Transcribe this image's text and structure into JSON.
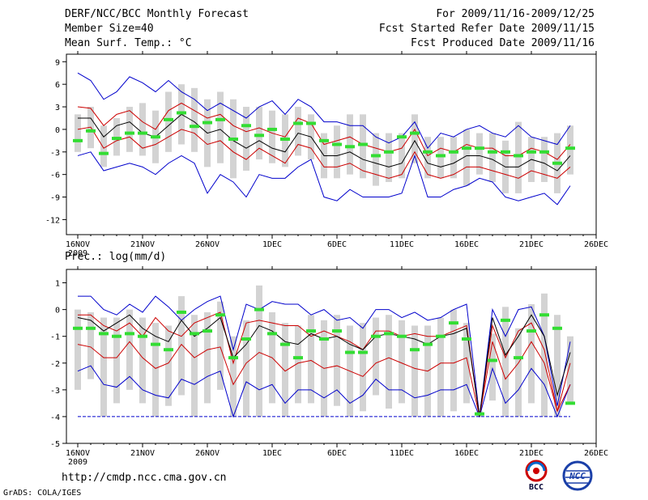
{
  "header": {
    "title": "DERF/NCC/BCC Monthly Forecast",
    "member_size": "Member Size=40",
    "forecast_period": "For 2009/11/16-2009/12/25",
    "start_date": "Fcst Started Refer Date 2009/11/15",
    "produced_date": "Fcst Produced Date 2009/11/16"
  },
  "footer": {
    "url": "http://cmdp.ncc.cma.gov.cn",
    "grads_credit": "GrADS: COLA/IGES",
    "logo_bcc_label": "BCC",
    "logo_ncc_label": "NCC"
  },
  "colors": {
    "max_min": "#0000cc",
    "spread": "#cc0000",
    "mean": "#000000",
    "median": "#33dd33",
    "box": "#d3d3d3"
  },
  "chart_data": [
    {
      "type": "box-line",
      "title": "Mean Surf. Temp.: °C",
      "x_tick_labels": [
        "16NOV",
        "21NOV",
        "26NOV",
        "1DEC",
        "6DEC",
        "11DEC",
        "16DEC",
        "21DEC",
        "26DEC"
      ],
      "x_tick_days": [
        0,
        5,
        10,
        15,
        20,
        25,
        30,
        35,
        40
      ],
      "year_label": "2009",
      "ylim": [
        -14,
        10
      ],
      "y_ticks": [
        9,
        6,
        3,
        0,
        -3,
        -6,
        -9,
        -12
      ],
      "days": [
        0,
        1,
        2,
        3,
        4,
        5,
        6,
        7,
        8,
        9,
        10,
        11,
        12,
        13,
        14,
        15,
        16,
        17,
        18,
        19,
        20,
        21,
        22,
        23,
        24,
        25,
        26,
        27,
        28,
        29,
        30,
        31,
        32,
        33,
        34,
        35,
        36,
        37,
        38
      ],
      "series": [
        {
          "name": "max",
          "values": [
            7.5,
            6.5,
            4.0,
            5.0,
            7.0,
            6.2,
            5.0,
            6.5,
            5.0,
            4.0,
            2.5,
            3.5,
            2.5,
            1.5,
            3.0,
            3.8,
            2.0,
            4.0,
            3.0,
            1.0,
            1.0,
            0.5,
            0.5,
            -1.0,
            -1.8,
            -1.0,
            1.0,
            -2.5,
            -0.5,
            -1.0,
            0.0,
            0.5,
            -0.5,
            -1.0,
            0.5,
            -1.0,
            -1.5,
            -2.0,
            0.5
          ]
        },
        {
          "name": "upper",
          "values": [
            3.0,
            2.8,
            0.5,
            2.0,
            2.5,
            1.0,
            0.0,
            2.5,
            3.5,
            2.5,
            1.5,
            2.0,
            0.5,
            -0.3,
            0.2,
            -0.5,
            -1.0,
            1.5,
            0.8,
            -2.0,
            -1.5,
            -1.0,
            -2.0,
            -2.5,
            -3.0,
            -2.5,
            0.0,
            -3.5,
            -2.5,
            -3.0,
            -2.0,
            -2.5,
            -2.5,
            -3.5,
            -3.5,
            -2.5,
            -3.0,
            -4.0,
            -2.0
          ]
        },
        {
          "name": "mean",
          "values": [
            1.5,
            1.5,
            -1.0,
            0.5,
            1.0,
            -0.5,
            -1.0,
            0.5,
            2.0,
            1.0,
            -0.5,
            0.0,
            -1.5,
            -2.5,
            -1.5,
            -2.5,
            -3.0,
            -0.5,
            -1.0,
            -3.5,
            -3.5,
            -3.0,
            -4.0,
            -4.5,
            -5.0,
            -4.5,
            -1.5,
            -4.5,
            -5.0,
            -4.5,
            -3.5,
            -3.5,
            -4.0,
            -5.0,
            -5.0,
            -4.0,
            -4.5,
            -5.5,
            -3.5
          ]
        },
        {
          "name": "lower",
          "values": [
            0.0,
            0.3,
            -2.5,
            -1.5,
            -1.0,
            -2.5,
            -2.0,
            -1.0,
            0.0,
            -0.5,
            -2.0,
            -1.5,
            -3.0,
            -4.0,
            -2.5,
            -3.5,
            -4.5,
            -2.0,
            -2.5,
            -5.0,
            -5.0,
            -4.5,
            -5.5,
            -6.0,
            -6.5,
            -6.0,
            -3.0,
            -6.0,
            -6.5,
            -6.0,
            -5.0,
            -5.0,
            -5.5,
            -6.0,
            -6.5,
            -5.5,
            -6.0,
            -6.5,
            -5.0
          ]
        },
        {
          "name": "min",
          "values": [
            -3.5,
            -3.0,
            -5.5,
            -5.0,
            -4.5,
            -5.0,
            -6.0,
            -4.5,
            -3.5,
            -4.5,
            -8.5,
            -6.0,
            -7.0,
            -9.0,
            -6.0,
            -6.5,
            -6.5,
            -5.0,
            -4.0,
            -9.0,
            -9.5,
            -8.0,
            -9.0,
            -9.0,
            -9.0,
            -8.5,
            -3.5,
            -9.0,
            -9.0,
            -8.0,
            -7.5,
            -6.5,
            -7.0,
            -9.0,
            -9.5,
            -9.0,
            -8.5,
            -10.0,
            -7.5
          ]
        },
        {
          "name": "median",
          "values": [
            -1.5,
            -0.2,
            -3.2,
            -1.2,
            -0.5,
            -0.5,
            -1.0,
            1.3,
            2.2,
            0.4,
            0.9,
            1.3,
            -1.3,
            0.5,
            -0.8,
            0.0,
            -1.3,
            0.8,
            0.8,
            -1.5,
            -2.0,
            -2.3,
            -2.0,
            -3.5,
            -3.0,
            -1.0,
            -0.5,
            -3.0,
            -3.5,
            -3.0,
            -2.5,
            -2.5,
            -3.0,
            -3.0,
            -3.5,
            -3.0,
            -3.0,
            -4.5,
            -2.5
          ]
        },
        {
          "name": "box_top",
          "values": [
            2.0,
            3.0,
            0.5,
            1.5,
            3.0,
            3.5,
            2.5,
            5.0,
            6.0,
            5.5,
            4.0,
            5.0,
            4.0,
            3.0,
            3.0,
            2.5,
            2.0,
            3.0,
            2.0,
            -0.5,
            0.5,
            2.0,
            2.0,
            -0.5,
            -0.5,
            -0.5,
            2.0,
            -1.0,
            -1.0,
            -1.0,
            0.0,
            -0.5,
            -0.5,
            -1.5,
            1.0,
            -1.0,
            -1.0,
            -0.5,
            0.5
          ]
        },
        {
          "name": "box_bottom",
          "values": [
            -3.0,
            -2.5,
            -5.0,
            -3.5,
            -3.0,
            -3.5,
            -4.5,
            -3.0,
            -2.0,
            -3.0,
            -5.0,
            -4.5,
            -6.5,
            -5.5,
            -4.0,
            -4.5,
            -5.0,
            -3.5,
            -4.0,
            -6.5,
            -6.5,
            -6.0,
            -6.5,
            -7.5,
            -7.0,
            -6.5,
            -4.5,
            -6.5,
            -6.5,
            -6.5,
            -7.5,
            -6.0,
            -7.0,
            -8.5,
            -8.5,
            -7.0,
            -7.0,
            -8.5,
            -6.0
          ]
        }
      ]
    },
    {
      "type": "box-line",
      "title": "Prec.: log(mm/d)",
      "x_tick_labels": [
        "16NOV",
        "21NOV",
        "26NOV",
        "1DEC",
        "6DEC",
        "11DEC",
        "16DEC",
        "21DEC",
        "26DEC"
      ],
      "x_tick_days": [
        0,
        5,
        10,
        15,
        20,
        25,
        30,
        35,
        40
      ],
      "year_label": "2009",
      "ylim": [
        -5,
        1.5
      ],
      "y_ticks": [
        1,
        0,
        -1,
        -2,
        -3,
        -4,
        -5
      ],
      "days": [
        0,
        1,
        2,
        3,
        4,
        5,
        6,
        7,
        8,
        9,
        10,
        11,
        12,
        13,
        14,
        15,
        16,
        17,
        18,
        19,
        20,
        21,
        22,
        23,
        24,
        25,
        26,
        27,
        28,
        29,
        30,
        31,
        32,
        33,
        34,
        35,
        36,
        37,
        38
      ],
      "series": [
        {
          "name": "max",
          "values": [
            0.5,
            0.5,
            0.0,
            -0.2,
            0.2,
            -0.1,
            0.5,
            0.1,
            -0.4,
            0.0,
            0.3,
            0.5,
            -1.5,
            0.2,
            0.0,
            0.3,
            0.2,
            0.2,
            -0.2,
            0.0,
            -0.4,
            -0.3,
            -0.7,
            0.0,
            0.0,
            -0.3,
            -0.1,
            -0.4,
            -0.3,
            0.0,
            0.2,
            -4.0,
            0.0,
            -1.0,
            0.0,
            0.1,
            -1.0,
            -3.6,
            -1.2
          ]
        },
        {
          "name": "upper",
          "values": [
            -0.2,
            -0.2,
            -0.6,
            -0.8,
            -0.5,
            -1.0,
            -0.3,
            -0.8,
            -1.0,
            -0.5,
            -0.3,
            -0.1,
            -2.0,
            -0.5,
            -0.4,
            -0.5,
            -0.6,
            -0.6,
            -1.0,
            -0.8,
            -1.0,
            -1.2,
            -1.5,
            -0.8,
            -0.8,
            -1.0,
            -0.9,
            -1.0,
            -1.0,
            -0.8,
            -0.6,
            -4.0,
            -0.6,
            -1.8,
            -0.8,
            -0.5,
            -1.5,
            -3.8,
            -2.0
          ]
        },
        {
          "name": "mean",
          "values": [
            -0.3,
            -0.4,
            -0.8,
            -0.5,
            -0.2,
            -0.7,
            -1.0,
            -1.2,
            -0.4,
            -1.0,
            -0.7,
            -0.3,
            -1.8,
            -1.3,
            -0.6,
            -0.8,
            -1.2,
            -1.3,
            -0.9,
            -1.1,
            -1.0,
            -1.3,
            -1.5,
            -1.0,
            -0.9,
            -1.0,
            -1.1,
            -1.3,
            -1.0,
            -0.9,
            -0.7,
            -4.0,
            -0.3,
            -1.7,
            -1.0,
            -0.2,
            -1.0,
            -3.2,
            -1.6
          ]
        },
        {
          "name": "lower",
          "values": [
            -1.3,
            -1.4,
            -1.8,
            -1.8,
            -1.2,
            -1.8,
            -2.2,
            -2.0,
            -1.3,
            -1.8,
            -1.5,
            -1.4,
            -2.8,
            -2.0,
            -1.6,
            -1.8,
            -2.3,
            -2.0,
            -1.9,
            -2.2,
            -2.1,
            -2.3,
            -2.5,
            -2.0,
            -1.8,
            -2.0,
            -2.2,
            -2.3,
            -2.0,
            -2.0,
            -1.8,
            -4.0,
            -1.2,
            -2.6,
            -2.0,
            -1.2,
            -2.0,
            -3.8,
            -2.8
          ]
        },
        {
          "name": "min",
          "values": [
            -2.3,
            -2.1,
            -2.8,
            -2.9,
            -2.5,
            -3.0,
            -3.2,
            -3.3,
            -2.6,
            -2.8,
            -2.5,
            -2.3,
            -4.0,
            -2.7,
            -3.0,
            -2.8,
            -3.5,
            -3.0,
            -3.0,
            -3.3,
            -3.0,
            -3.5,
            -3.2,
            -2.6,
            -3.0,
            -3.0,
            -3.3,
            -3.2,
            -3.0,
            -3.0,
            -2.8,
            -4.0,
            -2.2,
            -3.5,
            -3.0,
            -2.2,
            -2.8,
            -4.0,
            -2.8
          ]
        },
        {
          "name": "median",
          "values": [
            -0.7,
            -0.7,
            -0.9,
            -1.0,
            -0.9,
            -1.0,
            -1.3,
            -1.5,
            -0.1,
            -0.9,
            -0.8,
            -0.2,
            -1.8,
            -1.1,
            0.0,
            -0.9,
            -1.3,
            -1.8,
            -0.8,
            -1.1,
            -0.8,
            -1.6,
            -1.6,
            -1.0,
            -0.9,
            -1.0,
            -1.5,
            -1.3,
            -1.0,
            -0.5,
            -1.1,
            -3.9,
            -1.9,
            -0.4,
            -1.8,
            -0.8,
            -0.2,
            -0.7,
            -3.5
          ]
        },
        {
          "name": "box_top",
          "values": [
            0.0,
            -0.1,
            -0.3,
            -0.3,
            0.0,
            -0.3,
            -0.5,
            -0.6,
            0.5,
            -0.2,
            -0.1,
            0.3,
            -1.0,
            -0.4,
            0.9,
            -0.1,
            -0.5,
            -0.6,
            -0.2,
            -0.4,
            -0.2,
            -0.6,
            -0.5,
            -0.3,
            -0.2,
            -0.4,
            -0.6,
            -0.6,
            -0.3,
            0.0,
            -0.5,
            -3.8,
            -0.9,
            0.1,
            -0.7,
            0.2,
            0.6,
            -0.2,
            -1.0
          ]
        },
        {
          "name": "box_bottom",
          "values": [
            -3.0,
            -2.6,
            -4.0,
            -3.5,
            -3.0,
            -3.5,
            -4.0,
            -3.6,
            -3.2,
            -4.0,
            -3.5,
            -3.0,
            -4.0,
            -4.0,
            -4.0,
            -3.5,
            -4.0,
            -3.5,
            -3.5,
            -4.0,
            -3.6,
            -4.0,
            -3.8,
            -3.2,
            -3.7,
            -3.5,
            -4.0,
            -4.0,
            -4.0,
            -3.8,
            -3.5,
            -4.0,
            -3.4,
            -4.0,
            -4.0,
            -3.5,
            -4.0,
            -4.0,
            -3.5
          ]
        },
        {
          "name": "floor",
          "values": [
            -4,
            -4,
            -4,
            -4,
            -4,
            -4,
            -4,
            -4,
            -4,
            -4,
            -4,
            -4,
            -4,
            -4,
            -4,
            -4,
            -4,
            -4,
            -4,
            -4,
            -4,
            -4,
            -4,
            -4,
            -4,
            -4,
            -4,
            -4,
            -4,
            -4,
            -4,
            -4,
            -4,
            -4,
            -4,
            -4,
            -4,
            -4,
            -4
          ]
        }
      ]
    }
  ]
}
